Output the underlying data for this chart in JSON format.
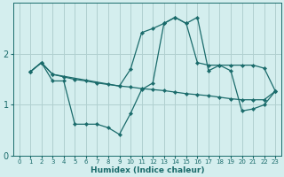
{
  "xlabel": "Humidex (Indice chaleur)",
  "bg_color": "#d4eeee",
  "grid_color": "#b0d0d0",
  "line_color": "#1a6b6b",
  "xlim": [
    -0.5,
    23.5
  ],
  "ylim": [
    0,
    3.0
  ],
  "yticks": [
    0,
    1,
    2
  ],
  "xticks": [
    0,
    1,
    2,
    3,
    4,
    5,
    6,
    7,
    8,
    9,
    10,
    11,
    12,
    13,
    14,
    15,
    16,
    17,
    18,
    19,
    20,
    21,
    22,
    23
  ],
  "line1_x": [
    1,
    2,
    3,
    4,
    5,
    6,
    7,
    8,
    9,
    10,
    11,
    12,
    13,
    14,
    15,
    16,
    17,
    18,
    19,
    20,
    21,
    22,
    23
  ],
  "line1_y": [
    1.65,
    1.83,
    1.47,
    1.47,
    0.62,
    0.62,
    0.62,
    0.55,
    0.42,
    0.83,
    1.3,
    1.43,
    2.6,
    2.72,
    2.6,
    2.72,
    1.67,
    1.78,
    1.67,
    0.88,
    0.92,
    1.0,
    1.27
  ],
  "line2_x": [
    1,
    2,
    3,
    4,
    5,
    6,
    7,
    8,
    9,
    10,
    11,
    12,
    13,
    14,
    15,
    16,
    17,
    18,
    19,
    20,
    21,
    22,
    23
  ],
  "line2_y": [
    1.65,
    1.83,
    1.6,
    1.55,
    1.5,
    1.47,
    1.43,
    1.4,
    1.37,
    1.35,
    1.32,
    1.3,
    1.28,
    1.25,
    1.22,
    1.2,
    1.18,
    1.15,
    1.12,
    1.1,
    1.1,
    1.1,
    1.27
  ],
  "line3_x": [
    1,
    2,
    3,
    9,
    10,
    11,
    12,
    13,
    14,
    15,
    16,
    17,
    18,
    19,
    20,
    21,
    22,
    23
  ],
  "line3_y": [
    1.65,
    1.83,
    1.6,
    1.37,
    1.7,
    2.42,
    2.5,
    2.6,
    2.72,
    2.6,
    1.83,
    1.78,
    1.78,
    1.78,
    1.78,
    1.78,
    1.72,
    1.27
  ]
}
